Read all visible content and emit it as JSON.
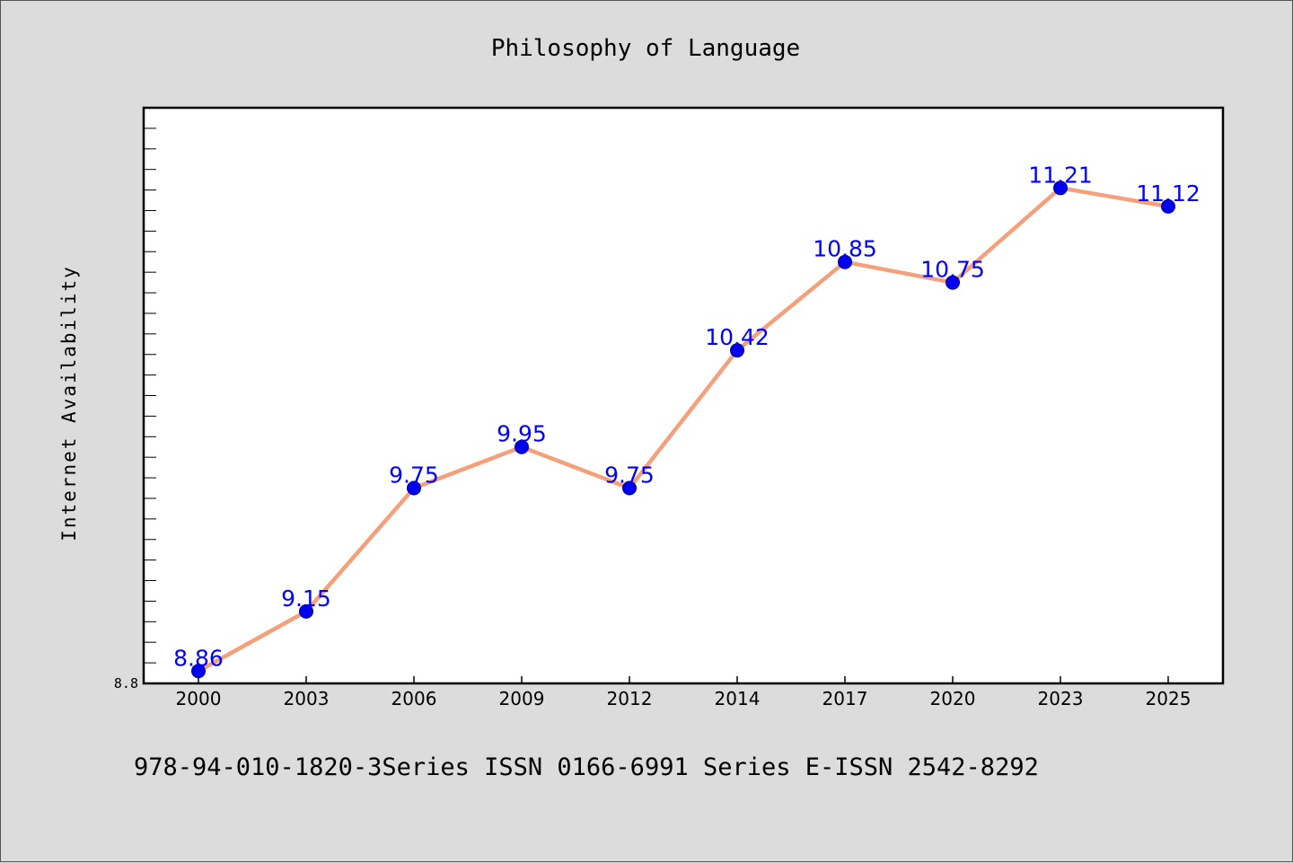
{
  "chart_data": {
    "type": "line",
    "title": "Philosophy of Language",
    "xlabel": "",
    "ylabel": "Internet Availability",
    "categories": [
      "2000",
      "2003",
      "2006",
      "2009",
      "2012",
      "2014",
      "2017",
      "2020",
      "2023",
      "2025"
    ],
    "series": [
      {
        "values": [
          8.86,
          9.15,
          9.75,
          9.95,
          9.75,
          10.42,
          10.85,
          10.75,
          11.21,
          11.12
        ],
        "line_color": "#f4a07a",
        "marker_color": "#0000ee"
      }
    ],
    "ylim": [
      8.8,
      11.6
    ],
    "yticks_labeled": [
      "8.8"
    ],
    "data_label_color": "#0000ff",
    "grid": false,
    "background": "#ffffff",
    "figure_background": "#dcdcdc"
  },
  "footer": "978-94-010-1820-3Series ISSN 0166-6991 Series E-ISSN 2542-8292"
}
